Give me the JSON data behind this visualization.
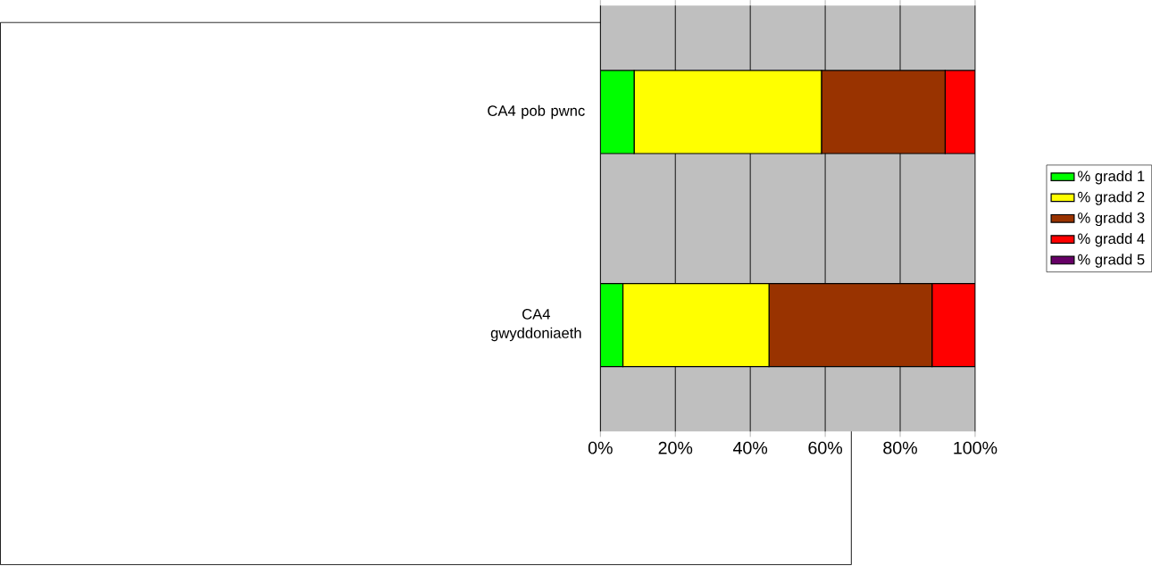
{
  "chart_data": {
    "type": "bar",
    "orientation": "horizontal",
    "stacked": true,
    "categories": [
      "CA4 pob pwnc",
      "CA4 gwyddoniaeth"
    ],
    "series": [
      {
        "name": "% gradd 1",
        "color": "#00ff00",
        "values": [
          9,
          6
        ]
      },
      {
        "name": "% gradd 2",
        "color": "#ffff00",
        "values": [
          50,
          39
        ]
      },
      {
        "name": "% gradd 3",
        "color": "#993300",
        "values": [
          33,
          43.5
        ]
      },
      {
        "name": "% gradd 4",
        "color": "#ff0000",
        "values": [
          8,
          11.5
        ]
      },
      {
        "name": "% gradd 5",
        "color": "#660066",
        "values": [
          0,
          0
        ]
      }
    ],
    "xlim": [
      0,
      100
    ],
    "xticks": [
      {
        "value": 0,
        "label": "0%"
      },
      {
        "value": 20,
        "label": "20%"
      },
      {
        "value": 40,
        "label": "40%"
      },
      {
        "value": 60,
        "label": "60%"
      },
      {
        "value": 80,
        "label": "80%"
      },
      {
        "value": 100,
        "label": "100%"
      }
    ],
    "grid": "x",
    "legend": "right"
  }
}
